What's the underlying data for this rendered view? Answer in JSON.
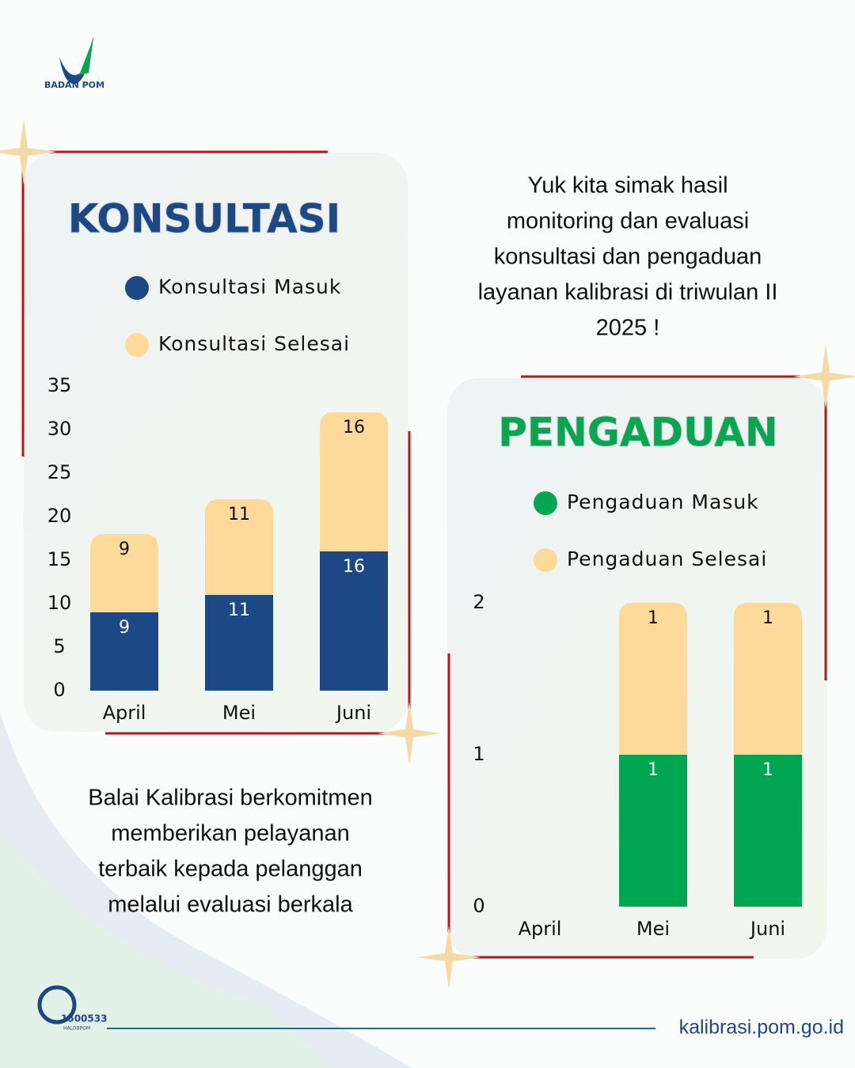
{
  "logo": {
    "text": "BADAN POM"
  },
  "intro": [
    "Yuk kita simak hasil",
    "monitoring dan evaluasi",
    "konsultasi dan pengaduan",
    "layanan kalibrasi di triwulan II",
    "2025 !"
  ],
  "closing": [
    "Balai Kalibrasi berkomitmen",
    "memberikan pelayanan",
    "terbaik kepada pelanggan",
    "melalui evaluasi berkala"
  ],
  "footer": {
    "hotline": "1500533",
    "hotline_sub": "HALOBPOM",
    "website": "kalibrasi.pom.go.id"
  },
  "chart_data": [
    {
      "type": "stacked_bar",
      "title": "KONSULTASI",
      "title_color": "#1d4886",
      "categories": [
        "April",
        "Mei",
        "Juni"
      ],
      "series": [
        {
          "name": "Konsultasi Masuk",
          "color": "#1d4886",
          "values": [
            9,
            11,
            16
          ]
        },
        {
          "name": "Konsultasi Selesai",
          "color": "#fdd99a",
          "values": [
            9,
            11,
            16
          ]
        }
      ],
      "ylim": [
        0,
        35
      ],
      "yticks": [
        0,
        5,
        10,
        15,
        20,
        25,
        30,
        35
      ],
      "grid": false
    },
    {
      "type": "stacked_bar",
      "title": "PENGADUAN",
      "title_color": "#0aa550",
      "categories": [
        "April",
        "Mei",
        "Juni"
      ],
      "series": [
        {
          "name": "Pengaduan Masuk",
          "color": "#00a651",
          "values": [
            null,
            1,
            1
          ]
        },
        {
          "name": "Pengaduan Selesai",
          "color": "#fdd99a",
          "values": [
            null,
            1,
            1
          ]
        }
      ],
      "ylim": [
        0,
        2
      ],
      "yticks": [
        0,
        1,
        2
      ],
      "grid": false
    }
  ]
}
